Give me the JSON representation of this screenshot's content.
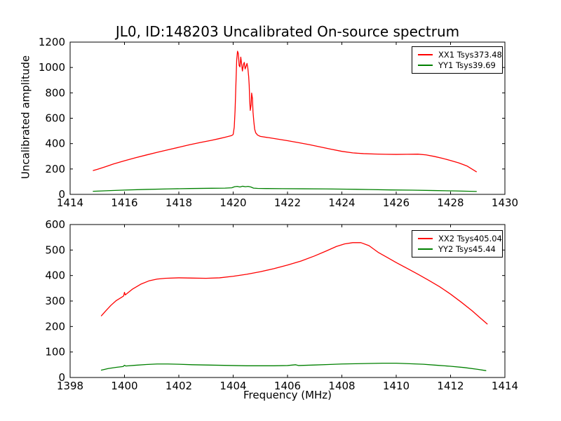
{
  "figure": {
    "title": "JL0, ID:148203 Uncalibrated On-source spectrum",
    "ylabel": "Uncalibrated amplitude",
    "xlabel": "Frequency (MHz)",
    "background_color": "#ffffff",
    "frame_color": "#000000"
  },
  "chart_data": [
    {
      "type": "line",
      "subplot": "top",
      "xlim": [
        1414,
        1430
      ],
      "ylim": [
        0,
        1200
      ],
      "xticks": [
        1414,
        1416,
        1418,
        1420,
        1422,
        1424,
        1426,
        1428,
        1430
      ],
      "yticks": [
        0,
        200,
        400,
        600,
        800,
        1000,
        1200
      ],
      "grid": false,
      "legend_position": "upper right",
      "series": [
        {
          "name": "XX1",
          "legend": "XX1 Tsys373.48",
          "color": "#ff0000",
          "points": [
            [
              1414.85,
              188
            ],
            [
              1415.0,
              197
            ],
            [
              1415.3,
              218
            ],
            [
              1415.6,
              240
            ],
            [
              1416.0,
              265
            ],
            [
              1416.4,
              288
            ],
            [
              1416.8,
              310
            ],
            [
              1417.2,
              331
            ],
            [
              1417.6,
              351
            ],
            [
              1418.0,
              371
            ],
            [
              1418.4,
              391
            ],
            [
              1418.8,
              409
            ],
            [
              1419.2,
              426
            ],
            [
              1419.5,
              440
            ],
            [
              1419.7,
              450
            ],
            [
              1419.85,
              458
            ],
            [
              1419.95,
              464
            ],
            [
              1420.0,
              472
            ],
            [
              1420.04,
              530
            ],
            [
              1420.07,
              660
            ],
            [
              1420.1,
              860
            ],
            [
              1420.13,
              1060
            ],
            [
              1420.16,
              1128
            ],
            [
              1420.19,
              1110
            ],
            [
              1420.22,
              1015
            ],
            [
              1420.25,
              1005
            ],
            [
              1420.28,
              1082
            ],
            [
              1420.31,
              1030
            ],
            [
              1420.34,
              972
            ],
            [
              1420.38,
              1025
            ],
            [
              1420.41,
              1040
            ],
            [
              1420.44,
              988
            ],
            [
              1420.48,
              1012
            ],
            [
              1420.51,
              1032
            ],
            [
              1420.54,
              995
            ],
            [
              1420.57,
              930
            ],
            [
              1420.59,
              860
            ],
            [
              1420.61,
              735
            ],
            [
              1420.63,
              662
            ],
            [
              1420.66,
              705
            ],
            [
              1420.68,
              798
            ],
            [
              1420.71,
              755
            ],
            [
              1420.73,
              650
            ],
            [
              1420.76,
              575
            ],
            [
              1420.79,
              515
            ],
            [
              1420.83,
              485
            ],
            [
              1420.9,
              467
            ],
            [
              1421.0,
              457
            ],
            [
              1421.3,
              447
            ],
            [
              1421.6,
              437
            ],
            [
              1422.0,
              423
            ],
            [
              1422.4,
              408
            ],
            [
              1422.8,
              392
            ],
            [
              1423.2,
              374
            ],
            [
              1423.6,
              356
            ],
            [
              1424.0,
              339
            ],
            [
              1424.4,
              327
            ],
            [
              1424.8,
              321
            ],
            [
              1425.2,
              318
            ],
            [
              1425.6,
              316
            ],
            [
              1426.0,
              315
            ],
            [
              1426.4,
              316
            ],
            [
              1426.8,
              317
            ],
            [
              1427.1,
              311
            ],
            [
              1427.4,
              299
            ],
            [
              1427.7,
              284
            ],
            [
              1428.0,
              267
            ],
            [
              1428.3,
              248
            ],
            [
              1428.6,
              224
            ],
            [
              1428.95,
              178
            ]
          ]
        },
        {
          "name": "YY1",
          "legend": "YY1 Tsys39.69",
          "color": "#008000",
          "points": [
            [
              1414.85,
              24
            ],
            [
              1415.4,
              29
            ],
            [
              1416.0,
              34
            ],
            [
              1416.8,
              39
            ],
            [
              1417.6,
              43
            ],
            [
              1418.4,
              46
            ],
            [
              1419.2,
              48
            ],
            [
              1419.7,
              49
            ],
            [
              1419.95,
              52
            ],
            [
              1420.05,
              60
            ],
            [
              1420.15,
              63
            ],
            [
              1420.25,
              58
            ],
            [
              1420.35,
              64
            ],
            [
              1420.45,
              60
            ],
            [
              1420.55,
              63
            ],
            [
              1420.65,
              58
            ],
            [
              1420.75,
              49
            ],
            [
              1420.9,
              47
            ],
            [
              1421.2,
              46
            ],
            [
              1421.8,
              45
            ],
            [
              1422.6,
              44
            ],
            [
              1423.4,
              43
            ],
            [
              1424.2,
              41
            ],
            [
              1425.0,
              38
            ],
            [
              1425.8,
              35
            ],
            [
              1426.6,
              33
            ],
            [
              1427.4,
              30
            ],
            [
              1428.2,
              27
            ],
            [
              1428.95,
              23
            ]
          ]
        }
      ]
    },
    {
      "type": "line",
      "subplot": "bottom",
      "xlabel": "Frequency (MHz)",
      "xlim": [
        1398,
        1414
      ],
      "ylim": [
        0,
        600
      ],
      "xticks": [
        1398,
        1400,
        1402,
        1404,
        1406,
        1408,
        1410,
        1412,
        1414
      ],
      "yticks": [
        0,
        100,
        200,
        300,
        400,
        500,
        600
      ],
      "grid": false,
      "legend_position": "upper right",
      "series": [
        {
          "name": "XX2",
          "legend": "XX2 Tsys405.04",
          "color": "#ff0000",
          "points": [
            [
              1399.15,
              242
            ],
            [
              1399.3,
              260
            ],
            [
              1399.5,
              283
            ],
            [
              1399.7,
              302
            ],
            [
              1399.9,
              315
            ],
            [
              1399.97,
              320
            ],
            [
              1400.0,
              334
            ],
            [
              1400.03,
              324
            ],
            [
              1400.3,
              347
            ],
            [
              1400.6,
              366
            ],
            [
              1400.9,
              379
            ],
            [
              1401.2,
              386
            ],
            [
              1401.5,
              389
            ],
            [
              1402.0,
              391
            ],
            [
              1402.5,
              390
            ],
            [
              1403.0,
              389
            ],
            [
              1403.5,
              391
            ],
            [
              1404.0,
              397
            ],
            [
              1404.5,
              405
            ],
            [
              1405.0,
              415
            ],
            [
              1405.5,
              427
            ],
            [
              1406.0,
              441
            ],
            [
              1406.5,
              457
            ],
            [
              1407.0,
              477
            ],
            [
              1407.4,
              495
            ],
            [
              1407.8,
              514
            ],
            [
              1408.1,
              524
            ],
            [
              1408.4,
              529
            ],
            [
              1408.7,
              529
            ],
            [
              1409.0,
              517
            ],
            [
              1409.35,
              490
            ],
            [
              1409.7,
              469
            ],
            [
              1410.0,
              451
            ],
            [
              1410.4,
              428
            ],
            [
              1410.8,
              405
            ],
            [
              1411.2,
              381
            ],
            [
              1411.6,
              356
            ],
            [
              1412.0,
              327
            ],
            [
              1412.4,
              295
            ],
            [
              1412.8,
              261
            ],
            [
              1413.1,
              233
            ],
            [
              1413.35,
              210
            ]
          ]
        },
        {
          "name": "YY2",
          "legend": "YY2 Tsys45.44",
          "color": "#008000",
          "points": [
            [
              1399.15,
              29
            ],
            [
              1399.4,
              35
            ],
            [
              1399.7,
              40
            ],
            [
              1399.95,
              43
            ],
            [
              1400.0,
              48
            ],
            [
              1400.05,
              45
            ],
            [
              1400.4,
              48
            ],
            [
              1400.8,
              51
            ],
            [
              1401.2,
              53
            ],
            [
              1401.6,
              53
            ],
            [
              1402.0,
              52
            ],
            [
              1402.5,
              50
            ],
            [
              1403.0,
              49
            ],
            [
              1403.5,
              48
            ],
            [
              1404.0,
              47
            ],
            [
              1404.5,
              46
            ],
            [
              1405.0,
              46
            ],
            [
              1405.5,
              46
            ],
            [
              1406.0,
              47
            ],
            [
              1406.3,
              50
            ],
            [
              1406.4,
              47
            ],
            [
              1407.0,
              49
            ],
            [
              1407.5,
              51
            ],
            [
              1408.0,
              53
            ],
            [
              1408.5,
              54
            ],
            [
              1409.0,
              55
            ],
            [
              1409.5,
              56
            ],
            [
              1410.0,
              56
            ],
            [
              1410.5,
              54
            ],
            [
              1411.0,
              52
            ],
            [
              1411.5,
              48
            ],
            [
              1412.0,
              44
            ],
            [
              1412.5,
              39
            ],
            [
              1413.0,
              32
            ],
            [
              1413.3,
              27
            ]
          ]
        }
      ]
    }
  ]
}
